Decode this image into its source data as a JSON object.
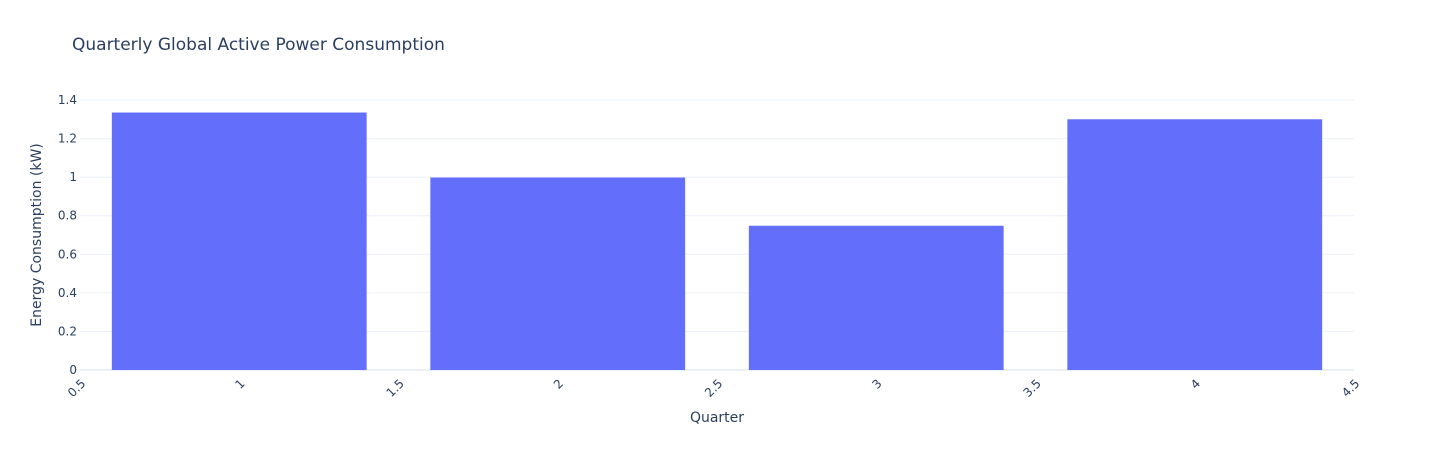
{
  "chart_data": {
    "type": "bar",
    "title": "Quarterly Global Active Power Consumption",
    "xlabel": "Quarter",
    "ylabel": "Energy Consumption (kW)",
    "x": [
      1,
      2,
      3,
      4
    ],
    "values": [
      1.335,
      0.998,
      0.748,
      1.3
    ],
    "xlim": [
      0.5,
      4.5
    ],
    "ylim": [
      0,
      1.4
    ],
    "x_ticks": [
      "0.5",
      "1",
      "1.5",
      "2",
      "2.5",
      "3",
      "3.5",
      "4",
      "4.5"
    ],
    "y_ticks": [
      "0",
      "0.2",
      "0.4",
      "0.6",
      "0.8",
      "1",
      "1.2",
      "1.4"
    ],
    "grid": true,
    "legend": "none",
    "colors": {
      "bar": "#636efa",
      "grid": "#ebf0f8",
      "text": "#2a3f5f",
      "background": "#ffffff"
    }
  }
}
